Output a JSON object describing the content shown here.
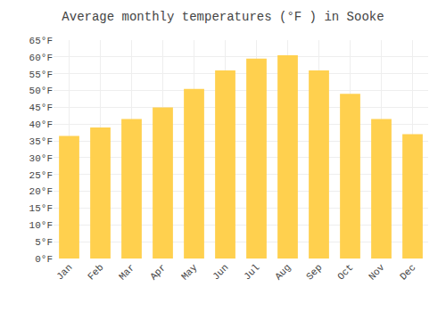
{
  "chart_data": {
    "type": "bar",
    "title": "Average monthly temperatures (°F ) in Sooke",
    "categories": [
      "Jan",
      "Feb",
      "Mar",
      "Apr",
      "May",
      "Jun",
      "Jul",
      "Aug",
      "Sep",
      "Oct",
      "Nov",
      "Dec"
    ],
    "values": [
      36.5,
      39.0,
      41.5,
      45.0,
      50.5,
      56.0,
      59.5,
      60.5,
      56.0,
      49.0,
      41.5,
      37.0
    ],
    "color": "#FFD04E",
    "ylim": [
      0,
      65
    ],
    "yticks": [
      {
        "value": 0,
        "label": "0°F"
      },
      {
        "value": 5,
        "label": "5°F"
      },
      {
        "value": 10,
        "label": "10°F"
      },
      {
        "value": 15,
        "label": "15°F"
      },
      {
        "value": 20,
        "label": "20°F"
      },
      {
        "value": 25,
        "label": "25°F"
      },
      {
        "value": 30,
        "label": "30°F"
      },
      {
        "value": 35,
        "label": "35°F"
      },
      {
        "value": 40,
        "label": "40°F"
      },
      {
        "value": 45,
        "label": "45°F"
      },
      {
        "value": 50,
        "label": "50°F"
      },
      {
        "value": 55,
        "label": "55°F"
      },
      {
        "value": 60,
        "label": "60°F"
      },
      {
        "value": 65,
        "label": "65°F"
      }
    ],
    "grid": true
  }
}
